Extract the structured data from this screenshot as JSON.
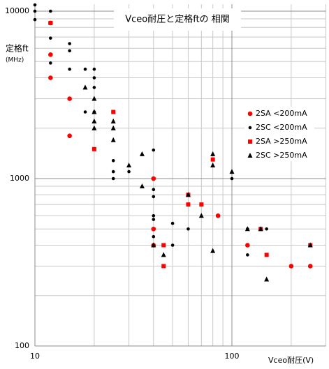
{
  "chart_data": {
    "type": "scatter",
    "title": "Vceo耐圧と定格ftの 相関",
    "y_label": "定格ft",
    "y_unit_label": "(MHz)",
    "x_label": "Vceo耐圧(V)",
    "x_log": true,
    "y_log": true,
    "grid": true,
    "xlim": [
      10,
      300
    ],
    "ylim": [
      100,
      11000
    ],
    "xticks": [
      10,
      100
    ],
    "yticks": [
      100,
      1000,
      10000
    ],
    "x_minor_grid": [
      20,
      30,
      40,
      50,
      60,
      70,
      80,
      90,
      200,
      300
    ],
    "y_minor_grid": [
      200,
      300,
      400,
      500,
      600,
      700,
      800,
      900,
      2000,
      3000,
      4000,
      5000,
      6000,
      7000,
      8000,
      9000
    ],
    "legend_position": "right",
    "series": [
      {
        "name": "2SA <200mA",
        "color": "#ff0000",
        "marker": "circle",
        "x": [
          12,
          12,
          12,
          15,
          15,
          40,
          40,
          40,
          85,
          120,
          200,
          250
        ],
        "values": [
          8500,
          5500,
          4000,
          3000,
          1800,
          1000,
          500,
          400,
          600,
          400,
          300,
          300
        ]
      },
      {
        "name": "2SC <200mA",
        "color": "#000000",
        "marker": "dot",
        "x": [
          10,
          10,
          10,
          12,
          12,
          12,
          12,
          15,
          15,
          15,
          18,
          18,
          20,
          20,
          20,
          20,
          25,
          25,
          25,
          30,
          40,
          40,
          40,
          40,
          40,
          40,
          50,
          50,
          60,
          100,
          120,
          120,
          150,
          250
        ],
        "values": [
          10900,
          10000,
          8900,
          10000,
          8500,
          6900,
          4900,
          6400,
          5800,
          4500,
          4500,
          2500,
          4500,
          4000,
          3500,
          2500,
          1280,
          1100,
          1000,
          1100,
          1480,
          860,
          780,
          600,
          570,
          450,
          540,
          400,
          500,
          1000,
          500,
          350,
          500,
          400
        ]
      },
      {
        "name": "2SA >250mA",
        "color": "#ff0000",
        "marker": "square",
        "x": [
          12,
          25,
          20,
          60,
          60,
          70,
          80,
          45,
          45,
          140,
          150,
          250
        ],
        "values": [
          8500,
          2500,
          1500,
          800,
          700,
          700,
          1300,
          400,
          300,
          500,
          350,
          400
        ]
      },
      {
        "name": "2SC >250mA",
        "color": "#000000",
        "marker": "triangle",
        "x": [
          18,
          20,
          20,
          20,
          20,
          25,
          25,
          25,
          30,
          35,
          35,
          40,
          45,
          60,
          70,
          80,
          80,
          80,
          100,
          120,
          140,
          150,
          250
        ],
        "values": [
          3500,
          3000,
          2500,
          2200,
          2000,
          2200,
          2000,
          1700,
          1200,
          1400,
          900,
          400,
          350,
          800,
          600,
          1400,
          1200,
          370,
          1100,
          500,
          500,
          250,
          400
        ]
      }
    ]
  }
}
